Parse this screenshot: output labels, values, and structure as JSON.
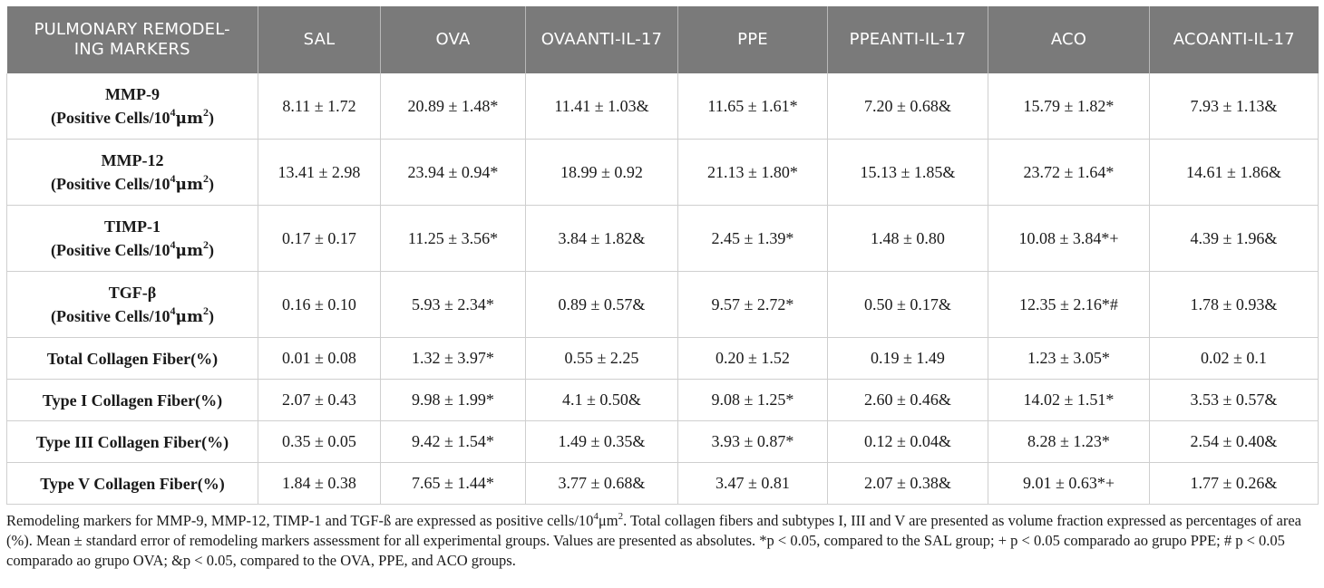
{
  "table": {
    "headers": [
      "PULMONARY REMODEL-ING MARKERS",
      "SAL",
      "OVA",
      "OVAANTI-IL-17",
      "PPE",
      "PPEANTI-IL-17",
      "ACO",
      "ACOANTI-IL-17"
    ],
    "rows": [
      {
        "marker": "MMP-9",
        "unit_pre": "(Positive Cells/10",
        "unit_exp": "4",
        "unit_mu": "μm",
        "unit_sq": "2",
        "unit_post": ")",
        "cells": [
          "8.11 ± 1.72",
          "20.89 ± 1.48*",
          "11.41 ± 1.03&",
          "11.65 ± 1.61*",
          "7.20 ± 0.68&",
          "15.79 ± 1.82*",
          "7.93 ± 1.13&"
        ]
      },
      {
        "marker": "MMP-12",
        "unit_pre": "(Positive Cells/10",
        "unit_exp": "4",
        "unit_mu": "μm",
        "unit_sq": "2",
        "unit_post": ")",
        "cells": [
          "13.41 ± 2.98",
          "23.94 ± 0.94*",
          "18.99 ± 0.92",
          "21.13 ± 1.80*",
          "15.13 ± 1.85&",
          "23.72 ± 1.64*",
          "14.61 ± 1.86&"
        ]
      },
      {
        "marker": "TIMP-1",
        "unit_pre": "(Positive Cells/10",
        "unit_exp": "4",
        "unit_mu": "μm",
        "unit_sq": "2",
        "unit_post": ")",
        "cells": [
          "0.17 ± 0.17",
          "11.25 ± 3.56*",
          "3.84 ± 1.82&",
          "2.45 ± 1.39*",
          "1.48 ± 0.80",
          "10.08 ± 3.84*+",
          "4.39 ± 1.96&"
        ]
      },
      {
        "marker": "TGF-β",
        "unit_pre": "(Positive Cells/10",
        "unit_exp": "4",
        "unit_mu": "μm",
        "unit_sq": "2",
        "unit_post": ")",
        "cells": [
          "0.16 ± 0.10",
          "5.93 ± 2.34*",
          "0.89 ± 0.57&",
          "9.57 ± 2.72*",
          "0.50 ± 0.17&",
          "12.35 ± 2.16*#",
          "1.78 ± 0.93&"
        ]
      },
      {
        "marker": "Total Collagen Fiber(%)",
        "cells": [
          "0.01 ± 0.08",
          "1.32 ± 3.97*",
          "0.55 ± 2.25",
          "0.20 ± 1.52",
          "0.19 ± 1.49",
          "1.23 ± 3.05*",
          "0.02 ± 0.1"
        ]
      },
      {
        "marker": "Type I Collagen Fiber(%)",
        "cells": [
          "2.07 ± 0.43",
          "9.98 ± 1.99*",
          "4.1 ± 0.50&",
          "9.08 ± 1.25*",
          "2.60 ± 0.46&",
          "14.02 ± 1.51*",
          "3.53 ± 0.57&"
        ]
      },
      {
        "marker": "Type III Collagen Fiber(%)",
        "cells": [
          "0.35 ± 0.05",
          "9.42 ± 1.54*",
          "1.49 ± 0.35&",
          "3.93 ± 0.87*",
          "0.12 ± 0.04&",
          "8.28 ± 1.23*",
          "2.54 ± 0.40&"
        ]
      },
      {
        "marker": "Type V Collagen Fiber(%)",
        "cells": [
          "1.84 ± 0.38",
          "7.65 ± 1.44*",
          "3.77 ± 0.68&",
          "3.47 ± 0.81",
          "2.07 ± 0.38&",
          "9.01 ± 0.63*+",
          "1.77 ± 0.26&"
        ]
      }
    ]
  },
  "footnote": {
    "part1": "Remodeling markers for MMP-9, MMP-12, TIMP-1 and TGF-ß are expressed as positive cells/10",
    "exp": "4",
    "mu": "μm",
    "sq": "2",
    "part2": ". Total collagen fibers and subtypes I, III and V are presented as volume fraction expressed as percentages of area (%). Mean ± standard error of remodeling markers assessment for all experimental groups. Values are presented as absolutes. *p < 0.05, compared to the SAL group; + p < 0.05 comparado ao grupo PPE; # p < 0.05 comparado ao grupo OVA; &p < 0.05, compared to the OVA, PPE, and ACO groups."
  }
}
